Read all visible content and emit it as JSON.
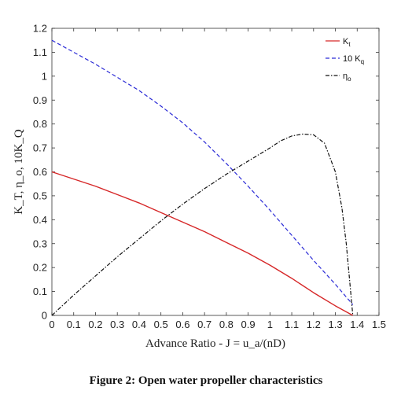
{
  "caption": "Figure 2: Open water propeller characteristics",
  "chart_data": {
    "type": "line",
    "xlabel": "Advance Ratio - J = u_a/(nD)",
    "ylabel": "K_T, η_o, 10K_Q",
    "xlim": [
      0,
      1.5
    ],
    "ylim": [
      0,
      1.2
    ],
    "xticks": [
      "0",
      "0.1",
      "0.2",
      "0.3",
      "0.4",
      "0.5",
      "0.6",
      "0.7",
      "0.8",
      "0.9",
      "1",
      "1.1",
      "1.2",
      "1.3",
      "1.4",
      "1.5"
    ],
    "yticks": [
      "0",
      "0.1",
      "0.2",
      "0.3",
      "0.4",
      "0.5",
      "0.6",
      "0.7",
      "0.8",
      "0.9",
      "1",
      "1.1",
      "1.2"
    ],
    "grid": false,
    "legend_position": "top-right",
    "series": [
      {
        "name": "K_t",
        "label_main": "K",
        "label_sub": "t",
        "color": "#d62728",
        "style": "solid",
        "x": [
          0,
          0.1,
          0.2,
          0.3,
          0.4,
          0.5,
          0.6,
          0.7,
          0.8,
          0.9,
          1.0,
          1.1,
          1.2,
          1.3,
          1.38
        ],
        "y": [
          0.6,
          0.57,
          0.54,
          0.505,
          0.47,
          0.43,
          0.39,
          0.35,
          0.305,
          0.26,
          0.21,
          0.155,
          0.095,
          0.04,
          0.0
        ]
      },
      {
        "name": "10 K_q",
        "label_main": "10 K",
        "label_sub": "q",
        "color": "#2b2bd6",
        "style": "dashed",
        "x": [
          0,
          0.1,
          0.2,
          0.3,
          0.4,
          0.5,
          0.6,
          0.7,
          0.8,
          0.9,
          1.0,
          1.1,
          1.2,
          1.3,
          1.38
        ],
        "y": [
          1.15,
          1.1,
          1.05,
          0.995,
          0.94,
          0.875,
          0.805,
          0.725,
          0.635,
          0.54,
          0.44,
          0.335,
          0.23,
          0.13,
          0.045
        ]
      },
      {
        "name": "η_o",
        "label_main": "η",
        "label_sub": "o",
        "color": "#111111",
        "style": "dashdot",
        "x": [
          0,
          0.1,
          0.2,
          0.3,
          0.4,
          0.5,
          0.6,
          0.7,
          0.8,
          0.9,
          1.0,
          1.05,
          1.1,
          1.15,
          1.2,
          1.25,
          1.3,
          1.33,
          1.35,
          1.37,
          1.38
        ],
        "y": [
          0,
          0.085,
          0.165,
          0.245,
          0.32,
          0.395,
          0.465,
          0.53,
          0.59,
          0.645,
          0.7,
          0.73,
          0.75,
          0.758,
          0.755,
          0.72,
          0.6,
          0.45,
          0.3,
          0.1,
          0.0
        ]
      }
    ]
  }
}
